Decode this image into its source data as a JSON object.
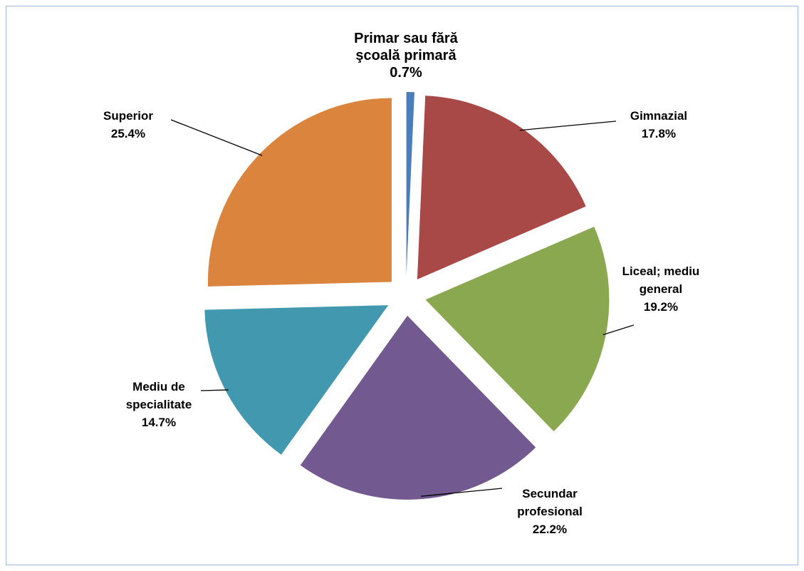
{
  "chart_data": {
    "type": "pie",
    "categories": [
      "Primar sau fără şcoală primară",
      "Gimnazial",
      "Liceal; mediu general",
      "Secundar profesional",
      "Mediu de specialitate",
      "Superior"
    ],
    "values": [
      0.7,
      17.8,
      19.2,
      22.2,
      14.7,
      25.4
    ],
    "value_labels": [
      "0.7%",
      "17.8%",
      "19.2%",
      "22.2%",
      "14.7%",
      "25.4%"
    ],
    "colors": [
      "#4a7ebb",
      "#a84947",
      "#8aa84f",
      "#725990",
      "#4198af",
      "#db843d"
    ]
  }
}
